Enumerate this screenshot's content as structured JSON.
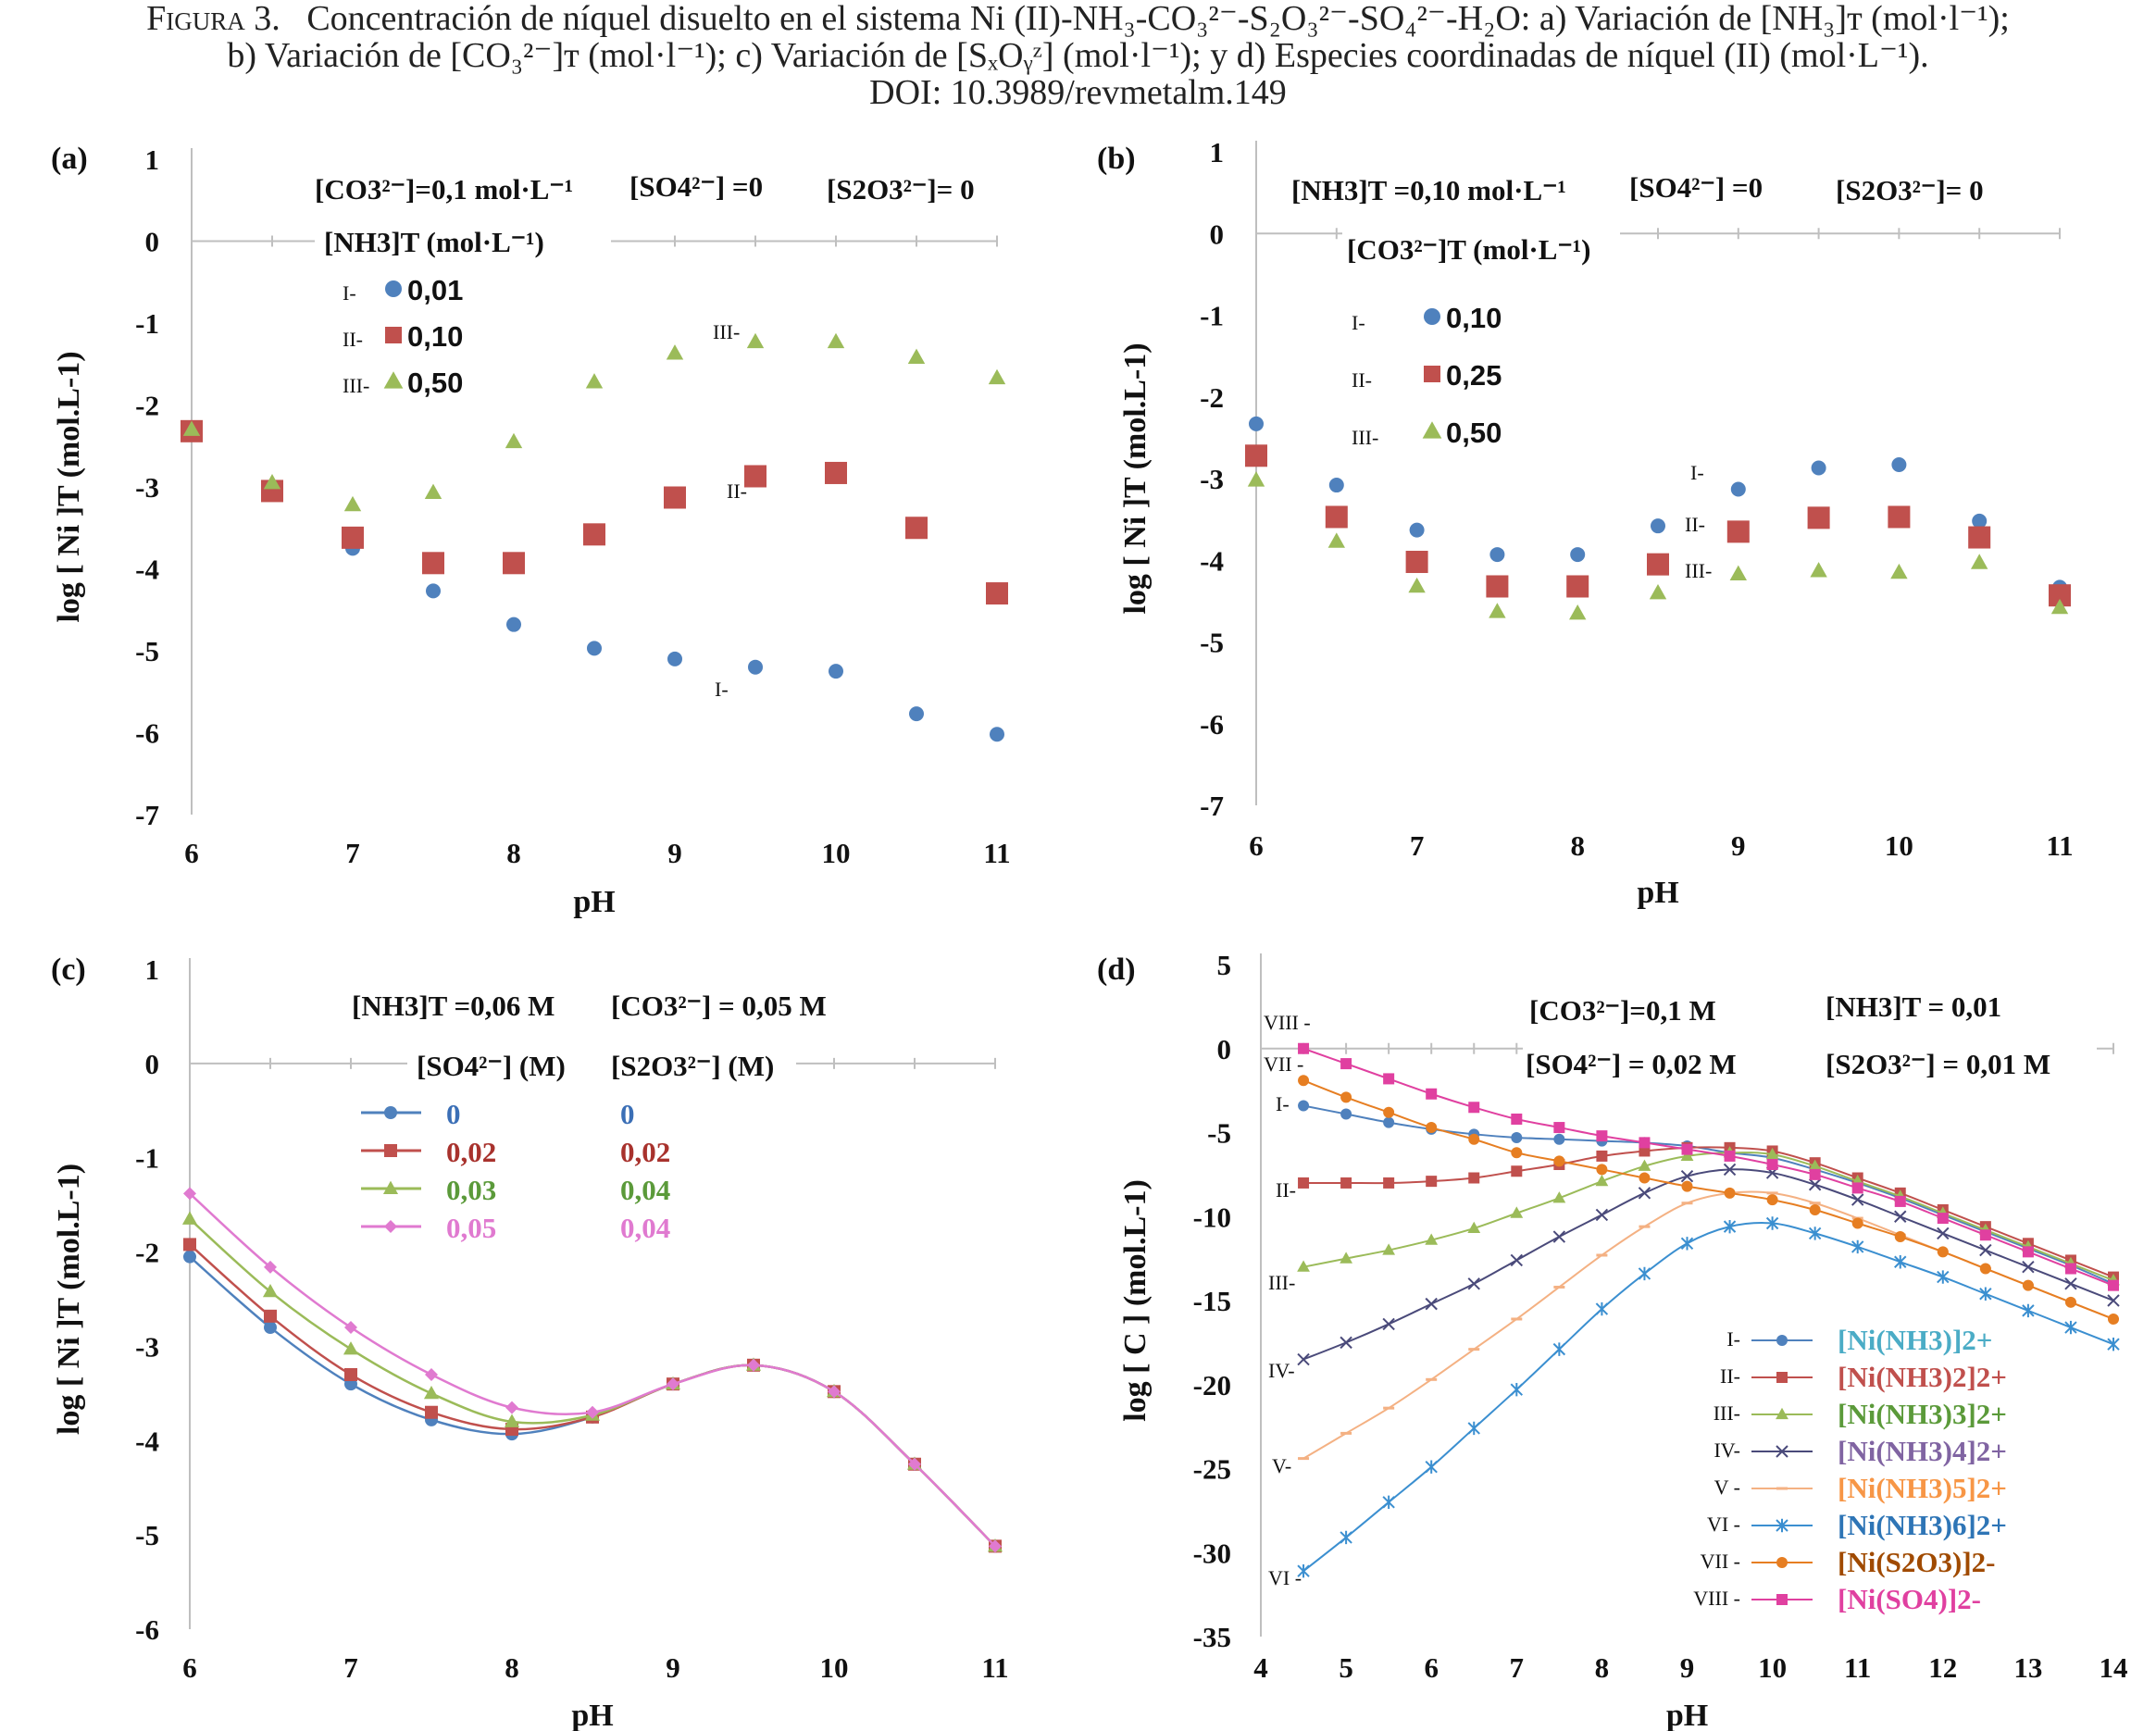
{
  "caption": {
    "prefix": "Figura 3.",
    "line1": "Concentración de níquel disuelto en el sistema Ni (II)-NH₃-CO₃²⁻-S₂O₃²⁻-SO₄²⁻-H₂O: a) Variación de [NH₃]ᴛ (mol·l⁻¹);",
    "line2": "b) Variación de [CO₃²⁻]ᴛ (mol·l⁻¹); c) Variación de [SₓOᵧᶻ] (mol·l⁻¹); y d) Especies coordinadas de níquel (II) (mol·L⁻¹).",
    "line3": "DOI: 10.3989/revmetalm.149"
  },
  "colors": {
    "blue": "#4f81bd",
    "red": "#c0504d",
    "green": "#9bbb59",
    "purple": "#8064a2",
    "peach": "#f79646",
    "sky": "#4bacc6",
    "orange": "#e67e22",
    "pink": "#e040a0",
    "c_blue": "#3b6fb6",
    "c_red": "#a8322d",
    "c_green": "#5b9a3a",
    "c_pink": "#e07ad0"
  },
  "chart_data": [
    {
      "id": "a",
      "type": "scatter",
      "panel_label": "(a)",
      "xlabel": "pH",
      "ylabel": "log [ Ni ]T (mol.L-1)",
      "xlim": [
        6,
        11
      ],
      "ylim": [
        -7,
        1
      ],
      "xticks": [
        "6",
        "7",
        "8",
        "9",
        "10",
        "11"
      ],
      "yticks": [
        "1",
        "0",
        "-1",
        "-2",
        "-3",
        "-4",
        "-5",
        "-6",
        "-7"
      ],
      "header": [
        "[CO3²⁻]=0,1 mol·L⁻¹",
        "[SO4²⁻] =0",
        "[S2O3²⁻]= 0"
      ],
      "legend_title": "[NH3]T  (mol·L⁻¹)",
      "series": [
        {
          "name": "0,01",
          "roman": "I-",
          "marker": "circle",
          "color": "#4f81bd",
          "x": [
            6,
            6.5,
            7,
            7.5,
            8,
            8.5,
            9,
            9.5,
            10,
            10.5,
            11
          ],
          "y": [
            -2.3,
            -3.0,
            -3.75,
            -4.27,
            -4.68,
            -4.97,
            -5.1,
            -5.2,
            -5.25,
            -5.77,
            -6.02
          ]
        },
        {
          "name": "0,10",
          "roman": "II-",
          "marker": "square",
          "color": "#c0504d",
          "x": [
            6,
            6.5,
            7,
            7.5,
            8,
            8.5,
            9,
            9.5,
            10,
            10.5,
            11
          ],
          "y": [
            -2.32,
            -3.05,
            -3.62,
            -3.93,
            -3.93,
            -3.58,
            -3.13,
            -2.87,
            -2.83,
            -3.5,
            -4.3
          ]
        },
        {
          "name": "0,50",
          "roman": "III-",
          "marker": "triangle",
          "color": "#9bbb59",
          "x": [
            6,
            6.5,
            7,
            7.5,
            8,
            8.5,
            9,
            9.5,
            10,
            10.5,
            11
          ],
          "y": [
            -2.3,
            -2.95,
            -3.22,
            -3.07,
            -2.45,
            -1.72,
            -1.37,
            -1.23,
            -1.23,
            -1.42,
            -1.67
          ]
        }
      ],
      "annotations": [
        "I-",
        "II-",
        "III-"
      ]
    },
    {
      "id": "b",
      "type": "scatter",
      "panel_label": "(b)",
      "xlabel": "pH",
      "ylabel": "log [ Ni ]T (mol.L-1)",
      "xlim": [
        6,
        11
      ],
      "ylim": [
        -7,
        1
      ],
      "xticks": [
        "6",
        "7",
        "8",
        "9",
        "10",
        "11"
      ],
      "yticks": [
        "1",
        "0",
        "-1",
        "-2",
        "-3",
        "-4",
        "-5",
        "-6",
        "-7"
      ],
      "header": [
        "[NH3]T =0,10 mol·L⁻¹",
        "[SO4²⁻] =0",
        "[S2O3²⁻]= 0"
      ],
      "legend_title": "[CO3²⁻]T (mol·L⁻¹)",
      "series": [
        {
          "name": "0,10",
          "roman": "I-",
          "marker": "circle",
          "color": "#4f81bd",
          "x": [
            6,
            6.5,
            7,
            7.5,
            8,
            8.5,
            9,
            9.5,
            10,
            10.5,
            11
          ],
          "y": [
            -2.33,
            -3.08,
            -3.63,
            -3.93,
            -3.93,
            -3.58,
            -3.13,
            -2.87,
            -2.83,
            -3.52,
            -4.33
          ]
        },
        {
          "name": "0,25",
          "roman": "II-",
          "marker": "square",
          "color": "#c0504d",
          "x": [
            6,
            6.5,
            7,
            7.5,
            8,
            8.5,
            9,
            9.5,
            10,
            10.5,
            11
          ],
          "y": [
            -2.72,
            -3.47,
            -4.02,
            -4.32,
            -4.32,
            -4.05,
            -3.65,
            -3.48,
            -3.47,
            -3.72,
            -4.43
          ]
        },
        {
          "name": "0,50",
          "roman": "III-",
          "marker": "triangle",
          "color": "#9bbb59",
          "x": [
            6,
            6.5,
            7,
            7.5,
            8,
            8.5,
            9,
            9.5,
            10,
            10.5,
            11
          ],
          "y": [
            -3.02,
            -3.77,
            -4.32,
            -4.63,
            -4.65,
            -4.4,
            -4.17,
            -4.13,
            -4.15,
            -4.03,
            -4.58
          ]
        }
      ],
      "annotations": [
        "I-",
        "II-",
        "III-"
      ]
    },
    {
      "id": "c",
      "type": "line",
      "panel_label": "(c)",
      "xlabel": "pH",
      "ylabel": "log [ Ni ]T (mol.L-1)",
      "xlim": [
        6,
        11
      ],
      "ylim": [
        -6,
        1
      ],
      "xticks": [
        "6",
        "7",
        "8",
        "9",
        "10",
        "11"
      ],
      "yticks": [
        "1",
        "0",
        "-1",
        "-2",
        "-3",
        "-4",
        "-5",
        "-6"
      ],
      "header": [
        "[NH3]T =0,06 M",
        "[CO3²⁻] = 0,05 M"
      ],
      "legend_columns": [
        "[SO4²⁻]  (M)",
        "[S2O3²⁻]  (M)"
      ],
      "series": [
        {
          "name": "0",
          "name2": "0",
          "marker": "circle",
          "color": "#4f81bd",
          "label_color": "#3b6fb6",
          "x": [
            6,
            6.5,
            7,
            7.5,
            8,
            8.5,
            9,
            9.5,
            10,
            10.5,
            11
          ],
          "y": [
            -2.05,
            -2.8,
            -3.4,
            -3.78,
            -3.93,
            -3.75,
            -3.4,
            -3.2,
            -3.48,
            -4.25,
            -5.12
          ]
        },
        {
          "name": "0,02",
          "name2": "0,02",
          "marker": "square",
          "color": "#c0504d",
          "label_color": "#a8322d",
          "x": [
            6,
            6.5,
            7,
            7.5,
            8,
            8.5,
            9,
            9.5,
            10,
            10.5,
            11
          ],
          "y": [
            -1.92,
            -2.68,
            -3.3,
            -3.7,
            -3.88,
            -3.75,
            -3.4,
            -3.2,
            -3.48,
            -4.25,
            -5.12
          ]
        },
        {
          "name": "0,03",
          "name2": "0,04",
          "marker": "triangle",
          "color": "#9bbb59",
          "label_color": "#5b9a3a",
          "x": [
            6,
            6.5,
            7,
            7.5,
            8,
            8.5,
            9,
            9.5,
            10,
            10.5,
            11
          ],
          "y": [
            -1.65,
            -2.42,
            -3.03,
            -3.5,
            -3.8,
            -3.73,
            -3.4,
            -3.2,
            -3.48,
            -4.25,
            -5.12
          ]
        },
        {
          "name": "0,05",
          "name2": "0,04",
          "marker": "diamond",
          "color": "#e07ad0",
          "label_color": "#e07ad0",
          "x": [
            6,
            6.5,
            7,
            7.5,
            8,
            8.5,
            9,
            9.5,
            10,
            10.5,
            11
          ],
          "y": [
            -1.38,
            -2.16,
            -2.8,
            -3.3,
            -3.65,
            -3.7,
            -3.4,
            -3.2,
            -3.48,
            -4.25,
            -5.12
          ]
        }
      ]
    },
    {
      "id": "d",
      "type": "line",
      "panel_label": "(d)",
      "xlabel": "pH",
      "ylabel": "log [ C ] (mol.L-1)",
      "xlim": [
        4,
        14
      ],
      "ylim": [
        -35,
        5
      ],
      "xticks": [
        "4",
        "5",
        "6",
        "7",
        "8",
        "9",
        "10",
        "11",
        "12",
        "13",
        "14"
      ],
      "yticks": [
        "5",
        "0",
        "-5",
        "-10",
        "-15",
        "-20",
        "-25",
        "-30",
        "-35"
      ],
      "header": [
        "[CO3²⁻]=0,1 M",
        "[NH3]T  = 0,01",
        "[SO4²⁻] = 0,02 M",
        "[S2O3²⁻] = 0,01 M"
      ],
      "series": [
        {
          "name": "[Ni(NH3)]2+",
          "roman": "I-",
          "marker": "circle",
          "color": "#4f81bd",
          "label_color": "#4bacc6",
          "x": [
            4.5,
            5,
            5.5,
            6,
            6.5,
            7,
            7.5,
            8,
            8.5,
            9,
            9.5,
            10,
            10.5,
            11,
            11.5,
            12,
            12.5,
            13,
            13.5,
            14
          ],
          "y": [
            -3.4,
            -3.9,
            -4.4,
            -4.8,
            -5.1,
            -5.3,
            -5.4,
            -5.5,
            -5.6,
            -5.8,
            -6.2,
            -6.5,
            -7.2,
            -8.0,
            -8.9,
            -9.9,
            -10.9,
            -11.9,
            -12.9,
            -14.0
          ]
        },
        {
          "name": "[Ni(NH3)2]2+",
          "roman": "II-",
          "marker": "square",
          "color": "#c0504d",
          "label_color": "#c0504d",
          "x": [
            4.5,
            5,
            5.5,
            6,
            6.5,
            7,
            7.5,
            8,
            8.5,
            9,
            9.5,
            10,
            10.5,
            11,
            11.5,
            12,
            12.5,
            13,
            13.5,
            14
          ],
          "y": [
            -8.0,
            -8.0,
            -8.0,
            -7.9,
            -7.7,
            -7.3,
            -6.9,
            -6.4,
            -6.1,
            -5.9,
            -5.9,
            -6.1,
            -6.8,
            -7.7,
            -8.6,
            -9.6,
            -10.6,
            -11.6,
            -12.6,
            -13.6
          ]
        },
        {
          "name": "[Ni(NH3)3]2+",
          "roman": "III-",
          "marker": "triangle",
          "color": "#9bbb59",
          "label_color": "#5b9a3a",
          "x": [
            4.5,
            5,
            5.5,
            6,
            6.5,
            7,
            7.5,
            8,
            8.5,
            9,
            9.5,
            10,
            10.5,
            11,
            11.5,
            12,
            12.5,
            13,
            13.5,
            14
          ],
          "y": [
            -13.0,
            -12.5,
            -12.0,
            -11.4,
            -10.7,
            -9.8,
            -8.9,
            -7.9,
            -7.0,
            -6.4,
            -6.2,
            -6.3,
            -7.0,
            -7.9,
            -8.8,
            -9.8,
            -10.8,
            -11.8,
            -12.8,
            -13.8
          ]
        },
        {
          "name": "[Ni(NH3)4]2+",
          "roman": "IV-",
          "marker": "x",
          "color": "#4a4a7a",
          "label_color": "#8064a2",
          "x": [
            4.5,
            5,
            5.5,
            6,
            6.5,
            7,
            7.5,
            8,
            8.5,
            9,
            9.5,
            10,
            10.5,
            11,
            11.5,
            12,
            12.5,
            13,
            13.5,
            14
          ],
          "y": [
            -18.5,
            -17.5,
            -16.4,
            -15.2,
            -14.0,
            -12.6,
            -11.2,
            -9.9,
            -8.6,
            -7.6,
            -7.2,
            -7.4,
            -8.1,
            -9.0,
            -10.0,
            -11.0,
            -12.0,
            -13.0,
            -14.0,
            -15.0
          ]
        },
        {
          "name": "[Ni(NH3)5]2+",
          "roman": "V -",
          "marker": "dash",
          "color": "#f4b183",
          "label_color": "#f79646",
          "x": [
            4.5,
            5,
            5.5,
            6,
            6.5,
            7,
            7.5,
            8,
            8.5,
            9,
            9.5,
            10,
            10.5,
            11,
            11.5,
            12,
            12.5,
            13,
            13.5,
            14
          ],
          "y": [
            -24.4,
            -22.9,
            -21.4,
            -19.7,
            -17.9,
            -16.1,
            -14.2,
            -12.3,
            -10.6,
            -9.2,
            -8.6,
            -8.6,
            -9.2,
            -10.1,
            -11.1,
            -12.1,
            -13.1,
            -14.1,
            -15.1,
            -16.1
          ]
        },
        {
          "name": "[Ni(NH3)6]2+",
          "roman": "VI -",
          "marker": "star",
          "color": "#3b8fd0",
          "label_color": "#2e75b6",
          "x": [
            4.5,
            5,
            5.5,
            6,
            6.5,
            7,
            7.5,
            8,
            8.5,
            9,
            9.5,
            10,
            10.5,
            11,
            11.5,
            12,
            12.5,
            13,
            13.5,
            14
          ],
          "y": [
            -31.1,
            -29.1,
            -27.0,
            -24.9,
            -22.6,
            -20.3,
            -17.9,
            -15.5,
            -13.4,
            -11.6,
            -10.6,
            -10.4,
            -11.0,
            -11.8,
            -12.7,
            -13.6,
            -14.6,
            -15.6,
            -16.6,
            -17.6
          ]
        },
        {
          "name": "[Ni(S2O3)]2-",
          "roman": "VII -",
          "marker": "circle",
          "color": "#e67e22",
          "label_color": "#a04a00",
          "x": [
            4.5,
            5,
            5.5,
            6,
            6.5,
            7,
            7.5,
            8,
            8.5,
            9,
            9.5,
            10,
            10.5,
            11,
            11.5,
            12,
            12.5,
            13,
            13.5,
            14
          ],
          "y": [
            -1.9,
            -2.9,
            -3.8,
            -4.7,
            -5.4,
            -6.2,
            -6.7,
            -7.2,
            -7.7,
            -8.2,
            -8.6,
            -9.0,
            -9.6,
            -10.4,
            -11.2,
            -12.1,
            -13.1,
            -14.1,
            -15.1,
            -16.1
          ]
        },
        {
          "name": "[Ni(SO4)]2-",
          "roman": "VIII -",
          "marker": "square",
          "color": "#e040a0",
          "label_color": "#e040a0",
          "x": [
            4.5,
            5,
            5.5,
            6,
            6.5,
            7,
            7.5,
            8,
            8.5,
            9,
            9.5,
            10,
            10.5,
            11,
            11.5,
            12,
            12.5,
            13,
            13.5,
            14
          ],
          "y": [
            0.0,
            -0.9,
            -1.8,
            -2.7,
            -3.5,
            -4.2,
            -4.7,
            -5.2,
            -5.6,
            -6.0,
            -6.4,
            -6.9,
            -7.5,
            -8.3,
            -9.1,
            -10.1,
            -11.1,
            -12.1,
            -13.1,
            -14.1
          ]
        }
      ],
      "annotations": [
        "VIII -",
        "VII -",
        "I-",
        "II-",
        "III-",
        "IV-",
        "V-",
        "VI -"
      ]
    }
  ]
}
